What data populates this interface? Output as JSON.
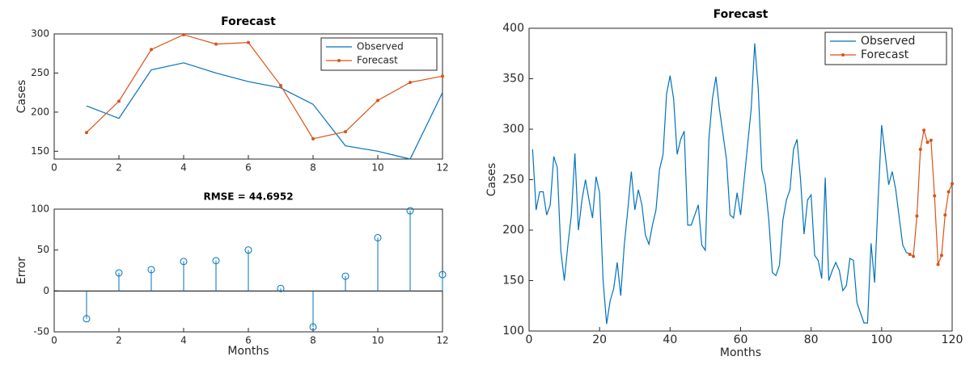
{
  "chart_data": [
    {
      "type": "line",
      "title": "Forecast",
      "ylabel": "Cases",
      "x": [
        1,
        2,
        3,
        4,
        5,
        6,
        7,
        8,
        9,
        10,
        11,
        12
      ],
      "series": [
        {
          "name": "Observed",
          "color": "#0072BD",
          "values": [
            208,
            192,
            254,
            263,
            250,
            239,
            231,
            210,
            157,
            150,
            140,
            225
          ]
        },
        {
          "name": "Forecast",
          "color": "#D95319",
          "marker": ".",
          "values": [
            174,
            214,
            280,
            299,
            287,
            289,
            234,
            166,
            175,
            215,
            238,
            246
          ]
        }
      ],
      "xlim": [
        0,
        12
      ],
      "ylim": [
        140,
        300
      ],
      "xticks": [
        0,
        2,
        4,
        6,
        8,
        10,
        12
      ],
      "yticks": [
        150,
        200,
        250,
        300
      ],
      "legend": "northeast"
    },
    {
      "type": "stem",
      "title": "RMSE = 44.6952",
      "xlabel": "Months",
      "ylabel": "Error",
      "x": [
        1,
        2,
        3,
        4,
        5,
        6,
        7,
        8,
        9,
        10,
        11,
        12
      ],
      "values": [
        -34,
        22,
        26,
        36,
        37,
        50,
        3,
        -44,
        18,
        65,
        98,
        20
      ],
      "color": "#0072BD",
      "marker": "o",
      "xlim": [
        0,
        12
      ],
      "ylim": [
        -50,
        100
      ],
      "xticks": [
        0,
        2,
        4,
        6,
        8,
        10,
        12
      ],
      "yticks": [
        -50,
        0,
        50,
        100
      ]
    },
    {
      "type": "line",
      "title": "Forecast",
      "xlabel": "Months",
      "ylabel": "Cases",
      "series": [
        {
          "name": "Observed",
          "color": "#0072BD",
          "x": [
            1,
            2,
            3,
            4,
            5,
            6,
            7,
            8,
            9,
            10,
            11,
            12,
            13,
            14,
            15,
            16,
            17,
            18,
            19,
            20,
            21,
            22,
            23,
            24,
            25,
            26,
            27,
            28,
            29,
            30,
            31,
            32,
            33,
            34,
            35,
            36,
            37,
            38,
            39,
            40,
            41,
            42,
            43,
            44,
            45,
            46,
            47,
            48,
            49,
            50,
            51,
            52,
            53,
            54,
            55,
            56,
            57,
            58,
            59,
            60,
            61,
            62,
            63,
            64,
            65,
            66,
            67,
            68,
            69,
            70,
            71,
            72,
            73,
            74,
            75,
            76,
            77,
            78,
            79,
            80,
            81,
            82,
            83,
            84,
            85,
            86,
            87,
            88,
            89,
            90,
            91,
            92,
            93,
            94,
            95,
            96,
            97,
            98,
            99,
            100,
            101,
            102,
            103,
            104,
            105,
            106,
            107,
            108
          ],
          "values": [
            280,
            220,
            238,
            238,
            215,
            225,
            273,
            262,
            180,
            150,
            185,
            215,
            276,
            200,
            230,
            250,
            230,
            212,
            253,
            237,
            150,
            107,
            130,
            142,
            168,
            135,
            185,
            220,
            258,
            220,
            240,
            225,
            195,
            186,
            205,
            220,
            260,
            275,
            335,
            353,
            330,
            275,
            290,
            298,
            205,
            205,
            215,
            225,
            185,
            180,
            290,
            330,
            352,
            320,
            295,
            270,
            215,
            212,
            237,
            215,
            250,
            285,
            320,
            385,
            340,
            260,
            245,
            210,
            158,
            155,
            165,
            210,
            230,
            240,
            280,
            290,
            250,
            196,
            230,
            235,
            175,
            170,
            152,
            252,
            150,
            160,
            168,
            160,
            140,
            145,
            172,
            170,
            128,
            118,
            108,
            108,
            187,
            148,
            230,
            304,
            275,
            245,
            258,
            240,
            212,
            185,
            178,
            176
          ]
        },
        {
          "name": "Forecast",
          "color": "#D95319",
          "marker": ".",
          "x": [
            108,
            109,
            110,
            111,
            112,
            113,
            114,
            115,
            116,
            117,
            118,
            119,
            120
          ],
          "values": [
            176,
            174,
            214,
            280,
            299,
            287,
            289,
            234,
            166,
            175,
            215,
            238,
            246
          ]
        }
      ],
      "xlim": [
        0,
        120
      ],
      "ylim": [
        100,
        400
      ],
      "xticks": [
        0,
        20,
        40,
        60,
        80,
        100,
        120
      ],
      "yticks": [
        100,
        150,
        200,
        250,
        300,
        350,
        400
      ],
      "legend": "northeast"
    }
  ]
}
